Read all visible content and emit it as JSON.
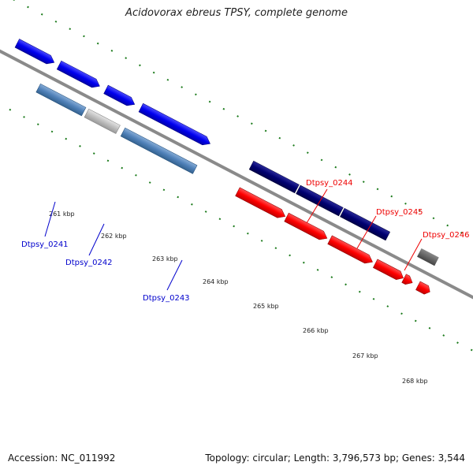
{
  "title": "Acidovorax ebreus TPSY, complete genome",
  "footer": {
    "accession": "Accession: NC_011992",
    "summary": "Topology: circular; Length: 3,796,573 bp; Genes: 3,544"
  },
  "ticks": [
    "261 kbp",
    "262 kbp",
    "263 kbp",
    "264 kbp",
    "265 kbp",
    "266 kbp",
    "267 kbp",
    "268 kbp"
  ],
  "gene_labels": [
    "Dtpsy_0241",
    "Dtpsy_0242",
    "Dtpsy_0243",
    "Dtpsy_0244",
    "Dtpsy_0245",
    "Dtpsy_0246"
  ],
  "colors": {
    "reverse_label": "#0000cc",
    "forward_label": "#ee0000",
    "backbone": "#888888",
    "tick_marks": "#1a7a1a"
  }
}
